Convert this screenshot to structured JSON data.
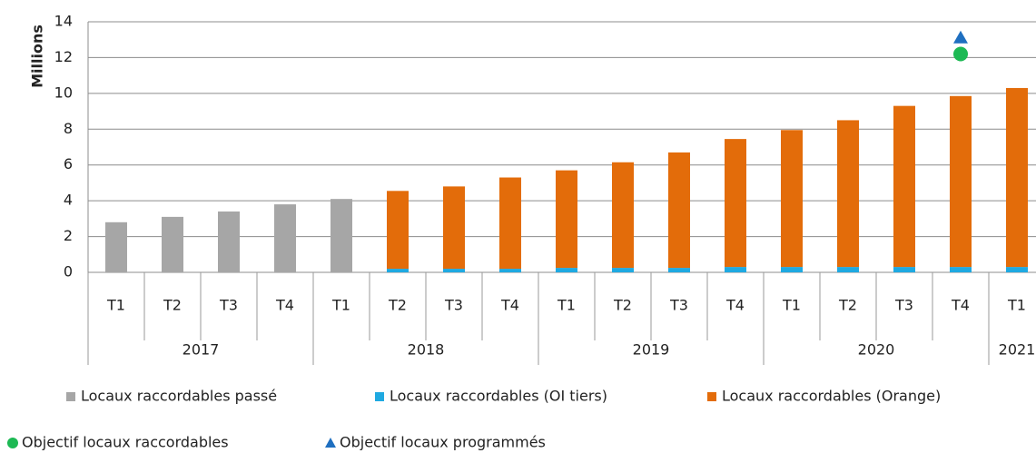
{
  "chart_data": {
    "type": "bar",
    "y_label": "Millions",
    "categories": [
      "T1",
      "T2",
      "T3",
      "T4",
      "T1",
      "T2",
      "T3",
      "T4",
      "T1",
      "T2",
      "T3",
      "T4",
      "T1",
      "T2",
      "T3",
      "T4",
      "T1"
    ],
    "groups": [
      {
        "label": "2017",
        "span": 4
      },
      {
        "label": "2018",
        "span": 4
      },
      {
        "label": "2019",
        "span": 4
      },
      {
        "label": "2020",
        "span": 4
      },
      {
        "label": "2021",
        "span": 1
      }
    ],
    "ylim": [
      0,
      14
    ],
    "yticks": [
      0,
      2,
      4,
      6,
      8,
      10,
      12,
      14
    ],
    "grid": true,
    "series": [
      {
        "name": "Locaux raccordables passé",
        "color": "#a6a6a6",
        "kind": "bar",
        "stack": "a",
        "values": [
          2.8,
          3.1,
          3.4,
          3.8,
          4.1,
          null,
          null,
          null,
          null,
          null,
          null,
          null,
          null,
          null,
          null,
          null,
          null
        ]
      },
      {
        "name": "Locaux raccordables (OI tiers)",
        "color": "#1fa9e1",
        "kind": "bar",
        "stack": "b",
        "values": [
          null,
          null,
          null,
          null,
          null,
          0.2,
          0.2,
          0.2,
          0.25,
          0.25,
          0.25,
          0.3,
          0.3,
          0.3,
          0.3,
          0.3,
          0.3
        ]
      },
      {
        "name": "Locaux raccordables (Orange)",
        "color": "#e36c0a",
        "kind": "bar",
        "stack": "b",
        "values": [
          null,
          null,
          null,
          null,
          null,
          4.35,
          4.6,
          5.1,
          5.45,
          5.9,
          6.45,
          7.15,
          7.65,
          8.2,
          9.0,
          9.55,
          10.0
        ]
      },
      {
        "name": "Objectif locaux raccordables",
        "color": "#1db954",
        "kind": "circle",
        "values": [
          null,
          null,
          null,
          null,
          null,
          null,
          null,
          null,
          null,
          null,
          null,
          null,
          null,
          null,
          null,
          12.2,
          null
        ]
      },
      {
        "name": "Objectif locaux programmés",
        "color": "#1f6fc0",
        "kind": "triangle",
        "values": [
          null,
          null,
          null,
          null,
          null,
          null,
          null,
          null,
          null,
          null,
          null,
          null,
          null,
          null,
          null,
          13.1,
          null
        ]
      }
    ]
  }
}
